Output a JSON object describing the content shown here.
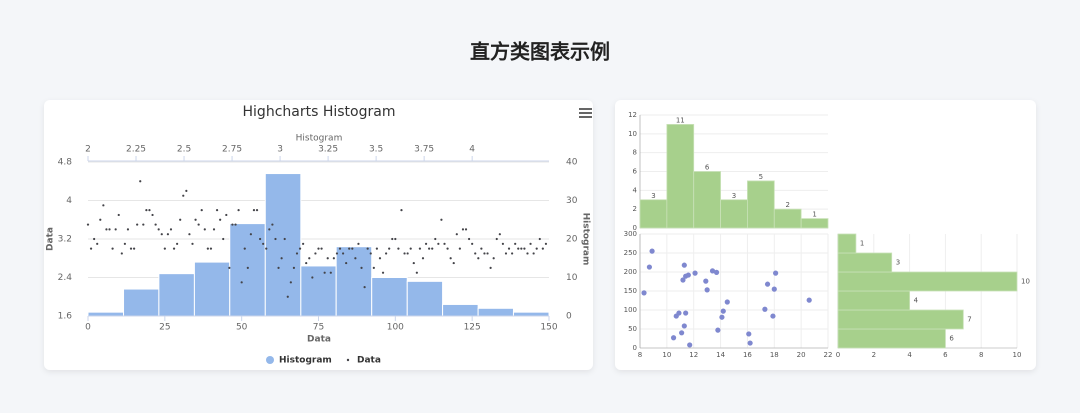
{
  "title": "直方类图表示例",
  "chart_data": [
    {
      "type": "histogram",
      "title": "Highcharts Histogram",
      "xlabel": "Data",
      "x2label": "Histogram",
      "ylabel": "Data",
      "y2label": "Histogram",
      "xlim": [
        0,
        150
      ],
      "xticks": [
        0,
        25,
        50,
        75,
        100,
        125,
        150
      ],
      "x2lim": [
        2,
        4.4
      ],
      "x2ticks": [
        2,
        2.25,
        2.5,
        2.75,
        3,
        3.25,
        3.5,
        3.75,
        4
      ],
      "ylim": [
        1.6,
        4.8
      ],
      "yticks": [
        1.6,
        2.4,
        3.2,
        4,
        4.8
      ],
      "y2lim": [
        0,
        40
      ],
      "y2ticks": [
        0,
        10,
        20,
        30,
        40
      ],
      "grid": true,
      "legend": "bottom",
      "series": [
        {
          "name": "Histogram",
          "type": "histogram",
          "axis": "y2",
          "color": "#94b8ea",
          "bins": [
            2,
            2.185,
            2.369,
            2.554,
            2.738,
            2.923,
            3.108,
            3.292,
            3.477,
            3.662,
            3.846,
            4.031,
            4.215,
            4.4
          ],
          "values": [
            1,
            7,
            11,
            14,
            24,
            37,
            13,
            18,
            10,
            9,
            3,
            2,
            1
          ]
        },
        {
          "name": "Data",
          "type": "scatter",
          "color": "#434348",
          "values": [
            3.5,
            3.0,
            3.2,
            3.1,
            3.6,
            3.9,
            3.4,
            3.4,
            3.0,
            3.4,
            3.7,
            2.9,
            3.1,
            3.4,
            3.0,
            3.0,
            3.5,
            4.4,
            3.5,
            3.8,
            3.8,
            3.7,
            3.5,
            3.4,
            3.3,
            3.0,
            3.3,
            3.4,
            3.0,
            3.1,
            3.6,
            4.1,
            4.2,
            3.3,
            3.1,
            3.6,
            3.5,
            3.8,
            3.4,
            3.0,
            3.0,
            3.4,
            3.8,
            3.6,
            3.2,
            3.7,
            2.6,
            3.5,
            3.5,
            3.8,
            2.3,
            3.0,
            2.6,
            3.3,
            3.8,
            3.8,
            3.2,
            3.1,
            3.0,
            3.4,
            3.5,
            3.2,
            2.6,
            2.8,
            3.2,
            2.0,
            2.3,
            2.6,
            2.9,
            3.0,
            3.1,
            2.7,
            2.8,
            2.4,
            2.9,
            3.0,
            3.0,
            2.5,
            2.8,
            2.5,
            2.8,
            2.9,
            3.0,
            2.9,
            2.7,
            3.0,
            3.0,
            2.8,
            3.1,
            2.6,
            2.2,
            3.0,
            2.9,
            2.6,
            3.0,
            2.8,
            2.5,
            2.9,
            3.0,
            3.2,
            3.2,
            3.0,
            3.8,
            2.9,
            2.9,
            3.0,
            2.7,
            2.5,
            3.0,
            2.8,
            3.1,
            3.0,
            3.0,
            3.2,
            3.1,
            3.6,
            3.1,
            3.0,
            2.8,
            2.7,
            3.3,
            3.0,
            3.4,
            3.4,
            3.2,
            3.1,
            2.9,
            2.8,
            3.0,
            2.9,
            2.9,
            2.6,
            2.8,
            3.2,
            3.3,
            3.1,
            2.9,
            3.0,
            2.9,
            3.1,
            3.0,
            3.0,
            3.0,
            2.9,
            3.1,
            2.9,
            3.0,
            3.2,
            3.0,
            3.1
          ]
        }
      ]
    },
    {
      "type": "histogram",
      "orientation": "vertical",
      "color": "#a7d08c",
      "data_labels": true,
      "grid": true,
      "bins": [
        8,
        10,
        12,
        14,
        16,
        18,
        20,
        22
      ],
      "values": [
        3,
        11,
        6,
        3,
        5,
        2,
        1
      ],
      "xlim": [
        8,
        22
      ],
      "ylim": [
        0,
        12
      ],
      "yticks": [
        0,
        2,
        4,
        6,
        8,
        10,
        12
      ]
    },
    {
      "type": "scatter",
      "color": "#7f88cf",
      "grid": true,
      "x": [
        8.3,
        8.7,
        8.9,
        10.5,
        10.7,
        10.9,
        11.1,
        11.3,
        11.4,
        11.3,
        11.2,
        11.4,
        11.6,
        11.7,
        12.1,
        12.9,
        13.0,
        13.4,
        13.7,
        13.8,
        14.1,
        14.2,
        14.5,
        16.1,
        16.2,
        17.3,
        17.5,
        17.9,
        18.0,
        18.1,
        20.6
      ],
      "values": [
        145,
        213,
        255,
        27,
        84,
        92,
        40,
        58,
        92,
        218,
        179,
        189,
        192,
        8,
        197,
        176,
        153,
        203,
        199,
        47,
        81,
        97,
        121,
        37,
        13,
        102,
        168,
        84,
        155,
        197,
        126
      ],
      "xlim": [
        8,
        22
      ],
      "xticks": [
        8,
        10,
        12,
        14,
        16,
        18,
        20,
        22
      ],
      "ylim": [
        0,
        300
      ],
      "yticks": [
        0,
        50,
        100,
        150,
        200,
        250,
        300
      ]
    },
    {
      "type": "histogram",
      "orientation": "horizontal",
      "color": "#a7d08c",
      "data_labels": true,
      "grid": true,
      "bins": [
        0,
        50,
        100,
        150,
        200,
        250,
        300
      ],
      "values": [
        6,
        7,
        4,
        10,
        3,
        1
      ],
      "xlim": [
        0,
        10
      ],
      "xticks": [
        0,
        2,
        4,
        6,
        8,
        10
      ],
      "ylim": [
        0,
        300
      ]
    }
  ]
}
